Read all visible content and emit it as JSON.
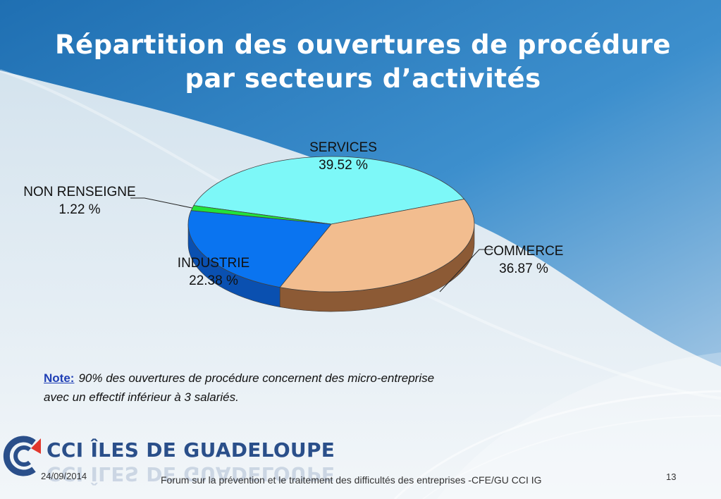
{
  "slide": {
    "title_line1": "Répartition des ouvertures de procédure",
    "title_line2": "par secteurs d’activités"
  },
  "chart_data": {
    "type": "pie",
    "title": "Répartition des ouvertures de procédure par secteurs d’activités",
    "slices": [
      {
        "name": "SERVICES",
        "value": 39.52,
        "label": "39.52 %",
        "color": "#7df8f8",
        "side": "#3fb8c0"
      },
      {
        "name": "COMMERCE",
        "value": 36.87,
        "label": "36.87 %",
        "color": "#f2bd8f",
        "side": "#8c5a35"
      },
      {
        "name": "INDUSTRIE",
        "value": 22.38,
        "label": "22.38 %",
        "color": "#0a74f0",
        "side": "#0a50b0"
      },
      {
        "name": "NON RENSEIGNE",
        "value": 1.22,
        "label": "1.22 %",
        "color": "#22e23a",
        "side": "#12901f"
      }
    ]
  },
  "note": {
    "key": "Note:",
    "text": "90% des ouvertures  de procédure concernent des micro-entreprise  avec un effectif  inférieur à  3 salariés."
  },
  "logo": {
    "text": "CCI ÎLES DE GUADELOUPE"
  },
  "footer": {
    "date": "24/09/2014",
    "text": "Forum sur la prévention et le traitement des difficultés des entreprises -CFE/GU CCI IG",
    "page": "13"
  },
  "colors": {
    "accent": "#1f3fb5",
    "logo": "#2a4f8a",
    "bg_blue": "#1d6fb5"
  }
}
